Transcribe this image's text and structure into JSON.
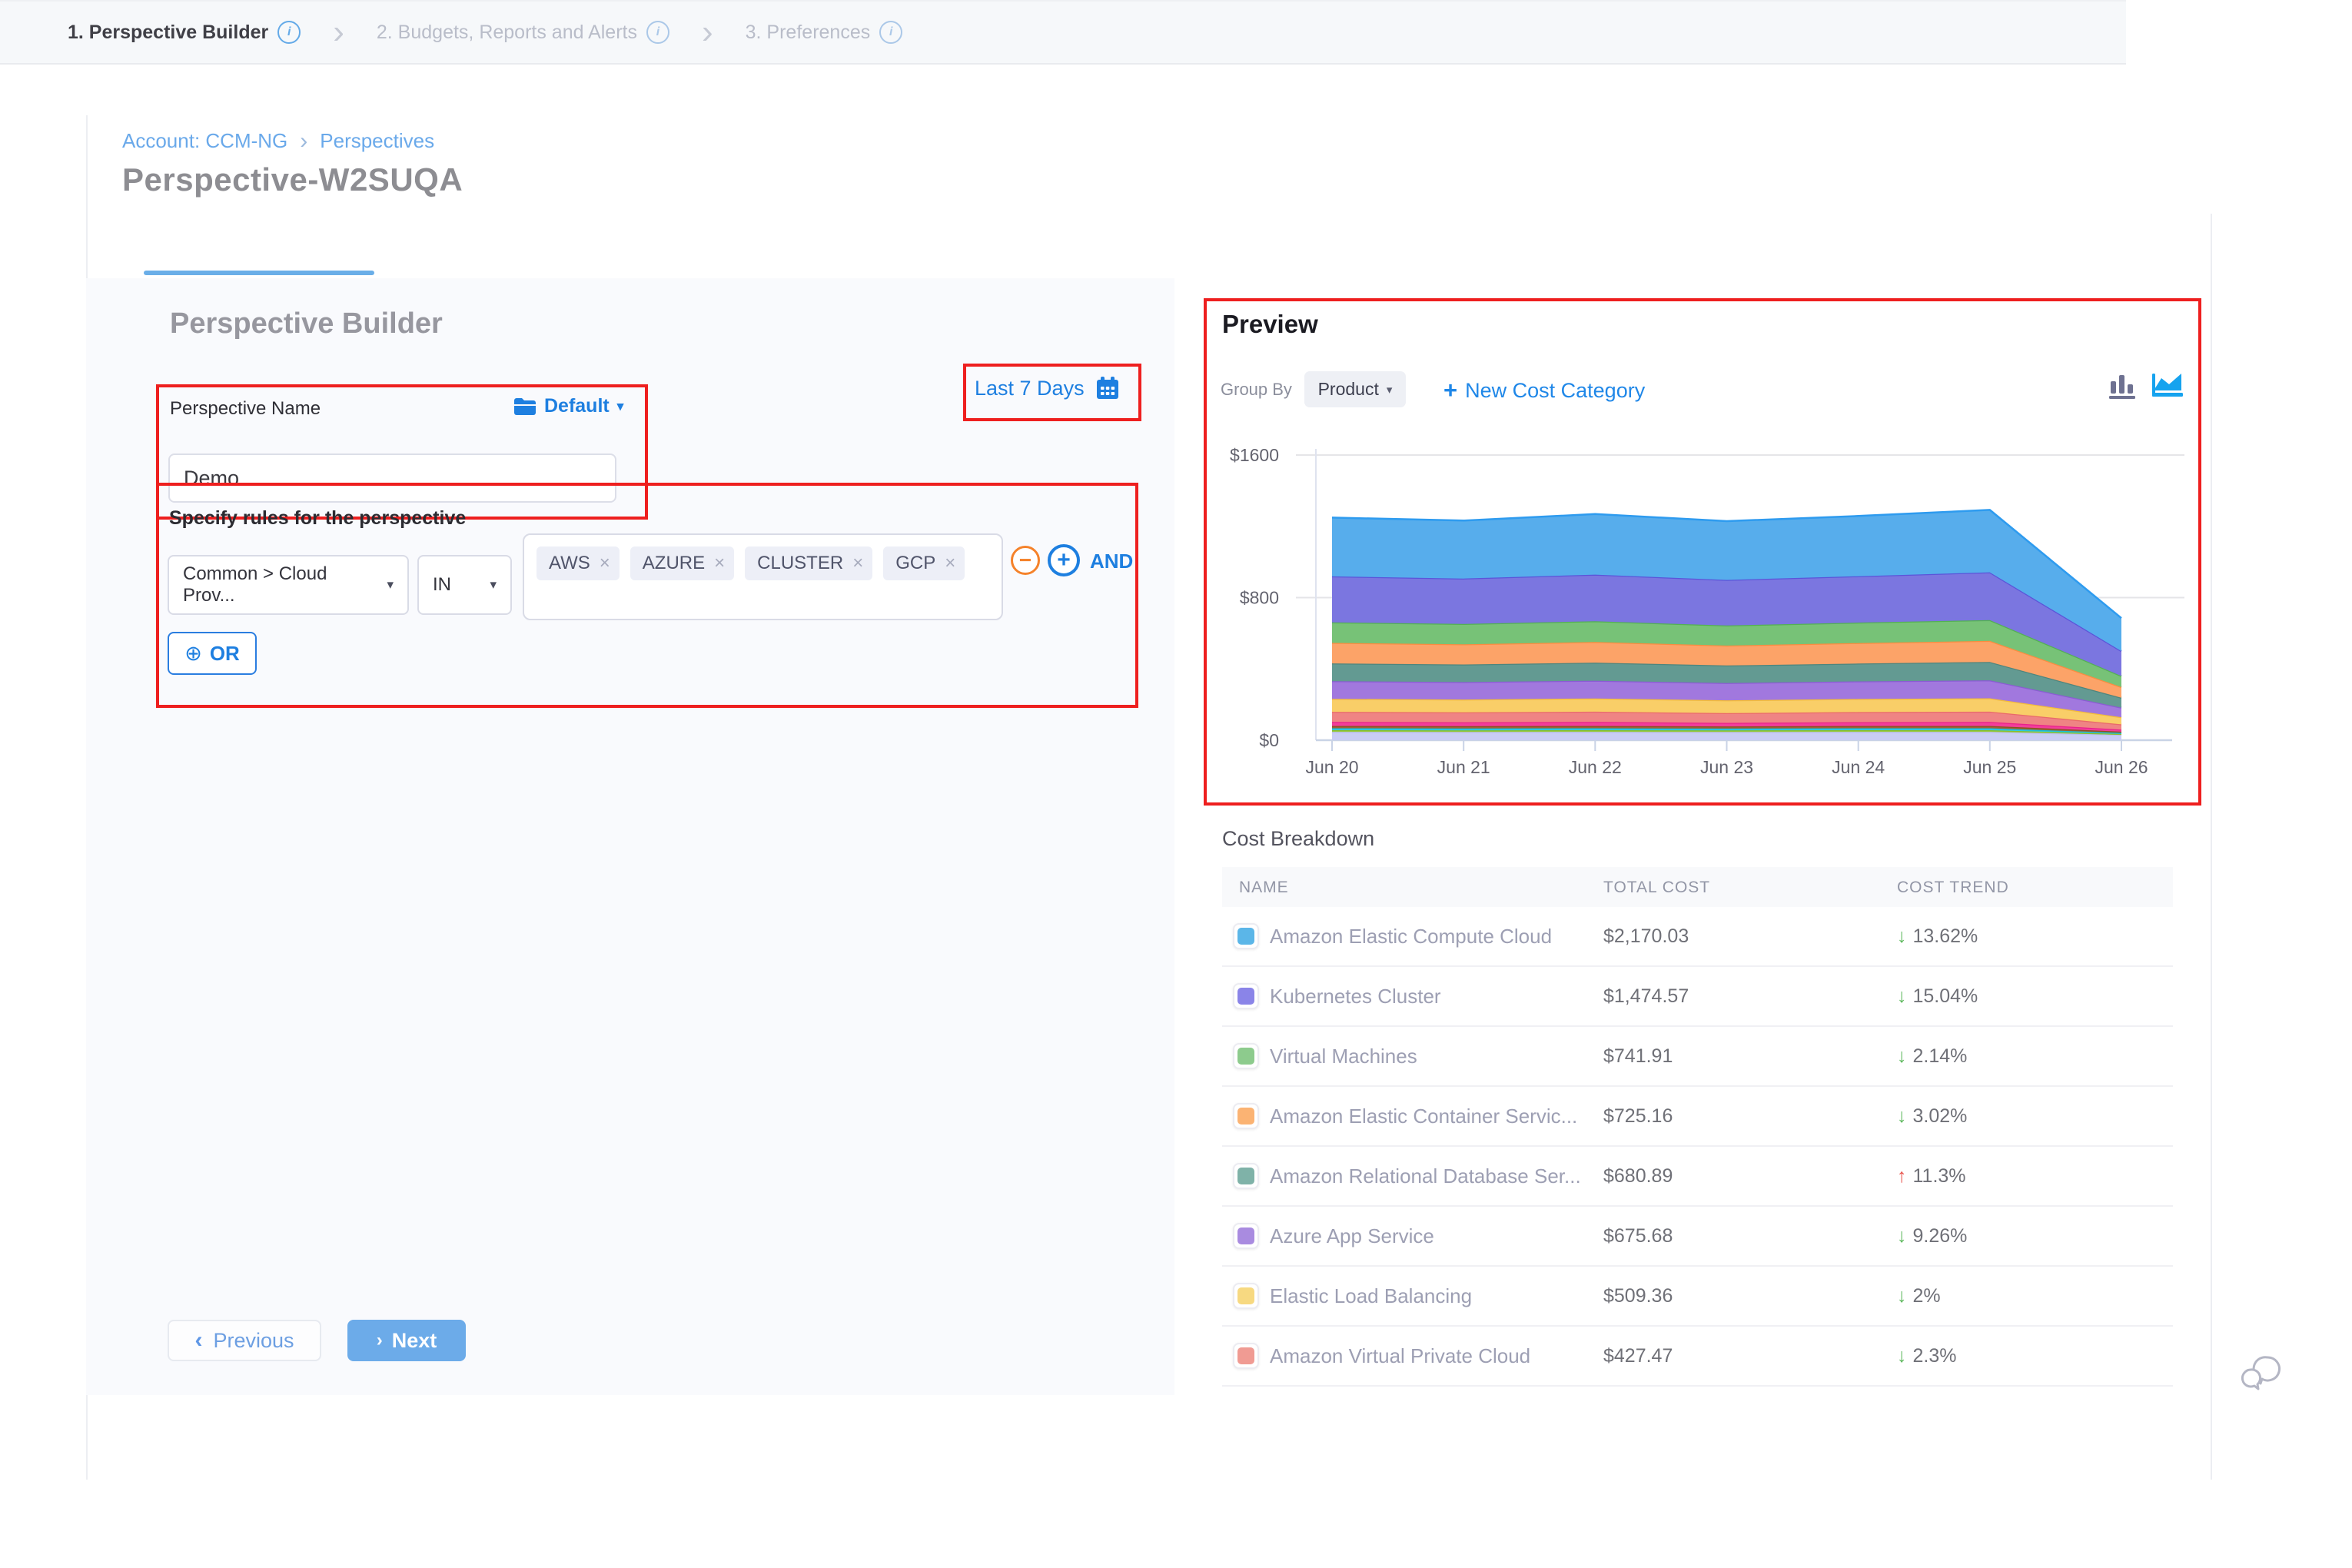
{
  "breadcrumb": {
    "account": "Account: CCM-NG",
    "page": "Perspectives"
  },
  "page_title": "Perspective-W2SUQA",
  "tabs": [
    {
      "label": "1. Perspective Builder",
      "active": true
    },
    {
      "label": "2. Budgets, Reports and Alerts",
      "active": false
    },
    {
      "label": "3. Preferences",
      "active": false
    }
  ],
  "builder": {
    "heading": "Perspective Builder",
    "name_label": "Perspective Name",
    "folder_selector": "Default",
    "name_value": "Demo",
    "rules_label": "Specify rules for the perspective",
    "field_value": "Common > Cloud Prov...",
    "operator_value": "IN",
    "tags": [
      "AWS",
      "AZURE",
      "CLUSTER",
      "GCP"
    ],
    "and_label": "AND",
    "or_label": "OR",
    "time_range": "Last 7 Days",
    "previous_label": "Previous",
    "next_label": "Next"
  },
  "preview": {
    "title": "Preview",
    "group_by_label": "Group By",
    "group_by_value": "Product",
    "new_cost_category_label": "New Cost Category"
  },
  "chart_data": {
    "type": "area",
    "stacked": true,
    "x": [
      "Jun 20",
      "Jun 21",
      "Jun 22",
      "Jun 23",
      "Jun 24",
      "Jun 25",
      "Jun 26"
    ],
    "ylim": [
      0,
      1600
    ],
    "y_ticks": [
      {
        "value": 0,
        "label": "$0"
      },
      {
        "value": 800,
        "label": "$800"
      },
      {
        "value": 1600,
        "label": "$1600"
      }
    ],
    "legend": "hidden",
    "grid": true,
    "series_top_to_bottom": [
      {
        "name": "Amazon Elastic Compute Cloud",
        "color": "#57ADEC",
        "stroke": "#2E9BEF",
        "values": [
          330,
          325,
          340,
          330,
          338,
          350,
          185
        ]
      },
      {
        "name": "Kubernetes Cluster",
        "color": "#7B76E0",
        "stroke": "#5B54D9",
        "values": [
          258,
          255,
          262,
          255,
          260,
          268,
          140
        ]
      },
      {
        "name": "Virtual Machines",
        "color": "#77C277",
        "stroke": "#53B053",
        "values": [
          115,
          114,
          116,
          113,
          115,
          117,
          62
        ]
      },
      {
        "name": "Amazon Elastic Container Service",
        "color": "#FCA368",
        "stroke": "#FB8C3F",
        "values": [
          115,
          113,
          116,
          112,
          115,
          118,
          60
        ]
      },
      {
        "name": "Amazon Relational Database Service",
        "color": "#639A92",
        "stroke": "#4E857D",
        "values": [
          100,
          99,
          101,
          98,
          100,
          103,
          55
        ]
      },
      {
        "name": "Azure App Service",
        "color": "#A178DE",
        "stroke": "#8A5BD3",
        "values": [
          99,
          98,
          100,
          97,
          99,
          101,
          54
        ]
      },
      {
        "name": "Elastic Load Balancing",
        "color": "#F9CE68",
        "stroke": "#F4BC38",
        "values": [
          73,
          72,
          74,
          72,
          73,
          75,
          40
        ]
      },
      {
        "name": "Amazon Virtual Private Cloud",
        "color": "#EF8484",
        "stroke": "#E96A6A",
        "values": [
          57,
          56,
          58,
          55,
          57,
          58,
          30
        ]
      },
      {
        "name": "unlabeled-pink",
        "color": "#F23E9A",
        "stroke": "#E9218B",
        "values": [
          22,
          21,
          22,
          20,
          21,
          22,
          11
        ]
      },
      {
        "name": "unlabeled-brown",
        "color": "#9C6235",
        "stroke": "#89521F",
        "values": [
          13,
          13,
          13,
          12,
          13,
          13,
          7
        ]
      },
      {
        "name": "unlabeled-cyan",
        "color": "#35CBE0",
        "stroke": "#18BCD6",
        "values": [
          11,
          11,
          11,
          10,
          11,
          11,
          6
        ]
      },
      {
        "name": "unlabeled-lime",
        "color": "#9CCC3E",
        "stroke": "#8ABE2B",
        "values": [
          9,
          9,
          9,
          9,
          9,
          9,
          5
        ]
      },
      {
        "name": "unlabeled-lavender",
        "color": "#C9CCF4",
        "stroke": "#B9BDEF",
        "values": [
          47,
          46,
          47,
          46,
          47,
          47,
          30
        ]
      }
    ]
  },
  "breakdown": {
    "title": "Cost Breakdown",
    "columns": [
      "NAME",
      "TOTAL COST",
      "COST TREND"
    ],
    "rows": [
      {
        "name": "Amazon Elastic Compute Cloud",
        "swatch": "#5BB6E8",
        "cost": "$2,170.03",
        "trend": "13.62%",
        "direction": "down"
      },
      {
        "name": "Kubernetes Cluster",
        "swatch": "#8A84E8",
        "cost": "$1,474.57",
        "trend": "15.04%",
        "direction": "down"
      },
      {
        "name": "Virtual Machines",
        "swatch": "#8DCB8D",
        "cost": "$741.91",
        "trend": "2.14%",
        "direction": "down"
      },
      {
        "name": "Amazon Elastic Container Servic...",
        "swatch": "#FBB373",
        "cost": "$725.16",
        "trend": "3.02%",
        "direction": "down"
      },
      {
        "name": "Amazon Relational Database Ser...",
        "swatch": "#7FB2A8",
        "cost": "$680.89",
        "trend": "11.3%",
        "direction": "up"
      },
      {
        "name": "Azure App Service",
        "swatch": "#A98BE0",
        "cost": "$675.68",
        "trend": "9.26%",
        "direction": "down"
      },
      {
        "name": "Elastic Load Balancing",
        "swatch": "#F7D981",
        "cost": "$509.36",
        "trend": "2%",
        "direction": "down"
      },
      {
        "name": "Amazon Virtual Private Cloud",
        "swatch": "#F09B93",
        "cost": "$427.47",
        "trend": "2.3%",
        "direction": "down"
      }
    ]
  },
  "icons": {
    "breadcrumb_chevron": "›",
    "tab_chevron": "›",
    "caret_down": "▾",
    "close": "×",
    "minus": "−",
    "plus": "+",
    "circle_plus": "⊕",
    "chevron_left": "‹",
    "chevron_right": "›",
    "arrow_down": "↓",
    "arrow_up": "↑"
  },
  "colors": {
    "primary_blue": "#1E7FE0",
    "annotation_red": "#EE1F1F",
    "trend_down_green": "#5CB85C",
    "trend_up_red": "#E8564F"
  }
}
